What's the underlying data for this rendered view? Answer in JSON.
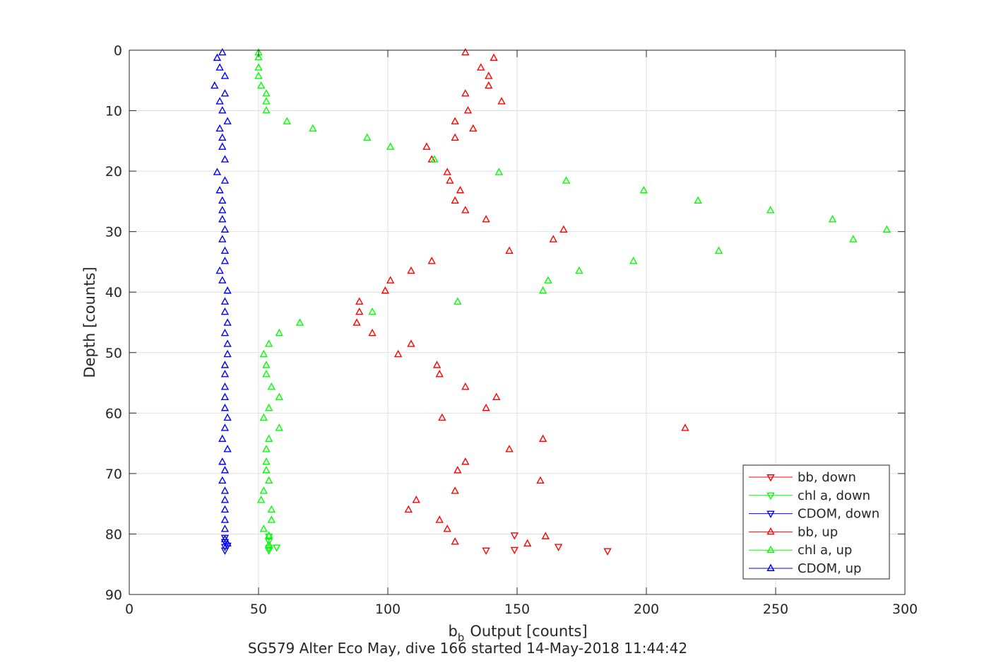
{
  "chart_data": {
    "type": "scatter",
    "title": "",
    "xlabel": "Output [counts]",
    "xlabel_prefix": "b",
    "xlabel_subscript": "b",
    "ylabel": "Depth [counts]",
    "caption": "SG579 Alter Eco May, dive 166 started 14-May-2018 11:44:42",
    "xlim": [
      0,
      300
    ],
    "ylim": [
      0,
      90
    ],
    "y_reversed": true,
    "grid": true,
    "legend_position": "bottom-right",
    "xticks": [
      "0",
      "50",
      "100",
      "150",
      "200",
      "250",
      "300"
    ],
    "yticks": [
      "0",
      "10",
      "20",
      "30",
      "40",
      "50",
      "60",
      "70",
      "80",
      "90"
    ],
    "series": [
      {
        "name": "bb, down",
        "color": "#ff0000",
        "marker": "triangle-down",
        "points": [
          [
            149,
            80.2
          ],
          [
            166,
            82.1
          ],
          [
            185,
            82.8
          ],
          [
            138,
            82.7
          ],
          [
            149,
            82.6
          ]
        ]
      },
      {
        "name": "chl a, down",
        "color": "#00ff00",
        "marker": "triangle-down",
        "points": [
          [
            54,
            80.4
          ],
          [
            54,
            81.2
          ],
          [
            54,
            82.3
          ],
          [
            54,
            82.7
          ],
          [
            57,
            82.2
          ]
        ]
      },
      {
        "name": "CDOM, down",
        "color": "#0000ff",
        "marker": "triangle-down",
        "points": [
          [
            37,
            80.6
          ],
          [
            37,
            81.3
          ],
          [
            37,
            82.1
          ],
          [
            37,
            82.7
          ],
          [
            38,
            81.9
          ]
        ]
      },
      {
        "name": "bb, up",
        "color": "#ff0000",
        "marker": "triangle-up",
        "points": [
          [
            130,
            0.4
          ],
          [
            141,
            1.3
          ],
          [
            136,
            2.9
          ],
          [
            139,
            4.3
          ],
          [
            139,
            5.9
          ],
          [
            130,
            7.2
          ],
          [
            144,
            8.5
          ],
          [
            131,
            10.0
          ],
          [
            126,
            11.8
          ],
          [
            133,
            13.0
          ],
          [
            126,
            14.5
          ],
          [
            115,
            16.0
          ],
          [
            117,
            18.1
          ],
          [
            123,
            20.2
          ],
          [
            124,
            21.6
          ],
          [
            128,
            23.2
          ],
          [
            126,
            24.9
          ],
          [
            130,
            26.5
          ],
          [
            138,
            28.0
          ],
          [
            168,
            29.7
          ],
          [
            164,
            31.3
          ],
          [
            147,
            33.2
          ],
          [
            117,
            34.9
          ],
          [
            109,
            36.5
          ],
          [
            101,
            38.1
          ],
          [
            99,
            39.8
          ],
          [
            89,
            41.6
          ],
          [
            89,
            43.3
          ],
          [
            88,
            45.1
          ],
          [
            94,
            46.8
          ],
          [
            109,
            48.6
          ],
          [
            104,
            50.3
          ],
          [
            119,
            52.1
          ],
          [
            120,
            53.6
          ],
          [
            130,
            55.7
          ],
          [
            142,
            57.4
          ],
          [
            138,
            59.2
          ],
          [
            121,
            60.8
          ],
          [
            215,
            62.5
          ],
          [
            160,
            64.3
          ],
          [
            147,
            66.0
          ],
          [
            130,
            68.1
          ],
          [
            127,
            69.5
          ],
          [
            159,
            71.2
          ],
          [
            126,
            72.9
          ],
          [
            111,
            74.4
          ],
          [
            108,
            76.0
          ],
          [
            120,
            77.7
          ],
          [
            123,
            79.2
          ],
          [
            161,
            80.4
          ],
          [
            126,
            81.3
          ],
          [
            154,
            81.6
          ]
        ]
      },
      {
        "name": "chl a, up",
        "color": "#00ff00",
        "marker": "triangle-up",
        "points": [
          [
            50,
            0.4
          ],
          [
            50,
            1.2
          ],
          [
            50,
            2.9
          ],
          [
            50,
            4.3
          ],
          [
            51,
            5.9
          ],
          [
            53,
            7.2
          ],
          [
            53,
            8.5
          ],
          [
            53,
            10.0
          ],
          [
            61,
            11.8
          ],
          [
            71,
            13.0
          ],
          [
            92,
            14.5
          ],
          [
            101,
            16.0
          ],
          [
            118,
            18.1
          ],
          [
            143,
            20.2
          ],
          [
            169,
            21.6
          ],
          [
            199,
            23.2
          ],
          [
            220,
            24.9
          ],
          [
            248,
            26.5
          ],
          [
            272,
            28.0
          ],
          [
            293,
            29.7
          ],
          [
            280,
            31.3
          ],
          [
            228,
            33.2
          ],
          [
            195,
            34.9
          ],
          [
            174,
            36.5
          ],
          [
            162,
            38.1
          ],
          [
            160,
            39.8
          ],
          [
            127,
            41.6
          ],
          [
            94,
            43.3
          ],
          [
            66,
            45.1
          ],
          [
            58,
            46.8
          ],
          [
            54,
            48.6
          ],
          [
            52,
            50.3
          ],
          [
            53,
            52.1
          ],
          [
            53,
            53.6
          ],
          [
            55,
            55.7
          ],
          [
            58,
            57.4
          ],
          [
            54,
            59.2
          ],
          [
            52,
            60.8
          ],
          [
            58,
            62.5
          ],
          [
            54,
            64.3
          ],
          [
            53,
            66.0
          ],
          [
            53,
            68.1
          ],
          [
            53,
            69.5
          ],
          [
            54,
            71.2
          ],
          [
            52,
            72.9
          ],
          [
            51,
            74.4
          ],
          [
            55,
            76.0
          ],
          [
            55,
            77.7
          ],
          [
            52,
            79.2
          ],
          [
            54,
            80.3
          ],
          [
            54,
            81.8
          ]
        ]
      },
      {
        "name": "CDOM, up",
        "color": "#0000ff",
        "marker": "triangle-up",
        "points": [
          [
            36,
            0.4
          ],
          [
            34,
            1.3
          ],
          [
            35,
            2.9
          ],
          [
            37,
            4.3
          ],
          [
            33,
            5.9
          ],
          [
            37,
            7.2
          ],
          [
            35,
            8.5
          ],
          [
            36,
            10.0
          ],
          [
            38,
            11.8
          ],
          [
            35,
            13.0
          ],
          [
            36,
            14.5
          ],
          [
            36,
            16.0
          ],
          [
            37,
            18.1
          ],
          [
            34,
            20.2
          ],
          [
            37,
            21.6
          ],
          [
            35,
            23.2
          ],
          [
            36,
            24.9
          ],
          [
            36,
            26.5
          ],
          [
            36,
            28.0
          ],
          [
            37,
            29.7
          ],
          [
            36,
            31.3
          ],
          [
            37,
            33.2
          ],
          [
            37,
            34.9
          ],
          [
            35,
            36.5
          ],
          [
            36,
            38.1
          ],
          [
            38,
            39.8
          ],
          [
            37,
            41.6
          ],
          [
            37,
            43.3
          ],
          [
            38,
            45.1
          ],
          [
            37,
            46.8
          ],
          [
            38,
            48.6
          ],
          [
            38,
            50.3
          ],
          [
            37,
            52.1
          ],
          [
            37,
            53.6
          ],
          [
            37,
            55.7
          ],
          [
            37,
            57.4
          ],
          [
            37,
            59.2
          ],
          [
            38,
            60.8
          ],
          [
            37,
            62.5
          ],
          [
            36,
            64.3
          ],
          [
            38,
            66.0
          ],
          [
            36,
            68.1
          ],
          [
            37,
            69.5
          ],
          [
            36,
            71.2
          ],
          [
            37,
            72.9
          ],
          [
            37,
            74.4
          ],
          [
            37,
            76.0
          ],
          [
            37,
            77.7
          ],
          [
            37,
            79.2
          ],
          [
            37,
            80.9
          ],
          [
            38,
            81.6
          ]
        ]
      }
    ]
  }
}
